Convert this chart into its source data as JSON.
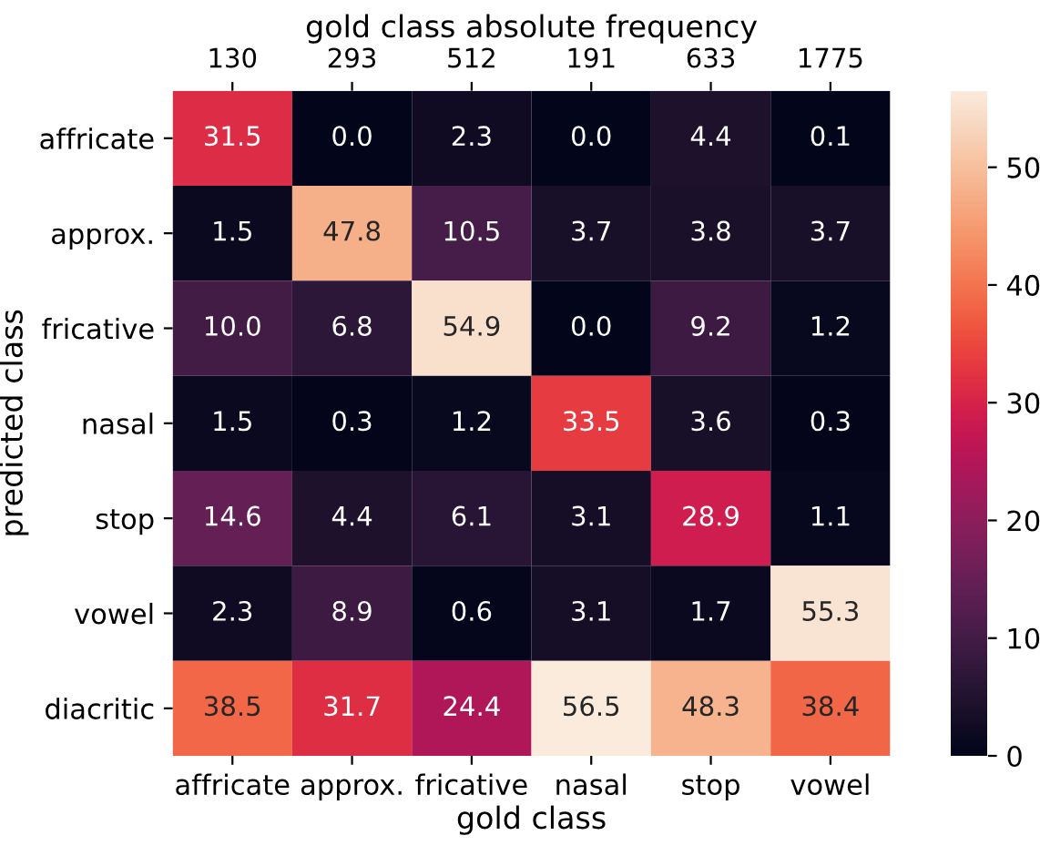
{
  "chart_data": {
    "type": "heatmap",
    "categories": [
      "affricate",
      "approx.",
      "fricative",
      "nasal",
      "stop",
      "vowel"
    ],
    "y_categories": [
      "affricate",
      "approx.",
      "fricative",
      "nasal",
      "stop",
      "vowel",
      "diacritic"
    ],
    "cells": [
      [
        31.5,
        0.0,
        2.3,
        0.0,
        4.4,
        0.1
      ],
      [
        1.5,
        47.8,
        10.5,
        3.7,
        3.8,
        3.7
      ],
      [
        10.0,
        6.8,
        54.9,
        0.0,
        9.2,
        1.2
      ],
      [
        1.5,
        0.3,
        1.2,
        33.5,
        3.6,
        0.3
      ],
      [
        14.6,
        4.4,
        6.1,
        3.1,
        28.9,
        1.1
      ],
      [
        2.3,
        8.9,
        0.6,
        3.1,
        1.7,
        55.3
      ],
      [
        38.5,
        31.7,
        24.4,
        56.5,
        48.3,
        38.4
      ]
    ],
    "data_labels": true,
    "xlabel": "gold class",
    "ylabel": "predicted class",
    "x2label": "gold class absolute frequency",
    "annotations": [
      "130",
      "293",
      "512",
      "191",
      "633",
      "1775"
    ],
    "cell_labels": [
      [
        "31.5",
        "0.0",
        "2.3",
        "0.0",
        "4.4",
        "0.1"
      ],
      [
        "1.5",
        "47.8",
        "10.5",
        "3.7",
        "3.8",
        "3.7"
      ],
      [
        "10.0",
        "6.8",
        "54.9",
        "0.0",
        "9.2",
        "1.2"
      ],
      [
        "1.5",
        "0.3",
        "1.2",
        "33.5",
        "3.6",
        "0.3"
      ],
      [
        "14.6",
        "4.4",
        "6.1",
        "3.1",
        "28.9",
        "1.1"
      ],
      [
        "2.3",
        "8.9",
        "0.6",
        "3.1",
        "1.7",
        "55.3"
      ],
      [
        "38.5",
        "31.7",
        "24.4",
        "56.5",
        "48.3",
        "38.4"
      ]
    ],
    "clim": [
      0,
      56.5
    ],
    "cticks": [
      0,
      10,
      20,
      30,
      40,
      50
    ]
  }
}
